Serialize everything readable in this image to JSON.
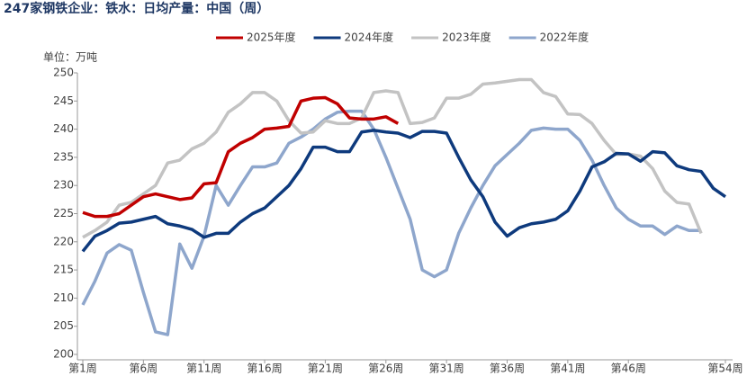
{
  "chart_data": {
    "type": "line",
    "title": "247家钢铁企业：铁水：日均产量：中国（周）",
    "y_axis_label": "单位：万吨",
    "x": [
      1,
      2,
      3,
      4,
      5,
      6,
      7,
      8,
      9,
      10,
      11,
      12,
      13,
      14,
      15,
      16,
      17,
      18,
      19,
      20,
      21,
      22,
      23,
      24,
      25,
      26,
      27,
      28,
      29,
      30,
      31,
      32,
      33,
      34,
      35,
      36,
      37,
      38,
      39,
      40,
      41,
      42,
      43,
      44,
      45,
      46,
      47,
      48,
      49,
      50,
      51,
      52,
      53,
      54
    ],
    "xlim": [
      1,
      54
    ],
    "xticks": [
      {
        "value": 1,
        "label": "第1周"
      },
      {
        "value": 6,
        "label": "第6周"
      },
      {
        "value": 11,
        "label": "第11周"
      },
      {
        "value": 16,
        "label": "第16周"
      },
      {
        "value": 21,
        "label": "第21周"
      },
      {
        "value": 26,
        "label": "第26周"
      },
      {
        "value": 31,
        "label": "第31周"
      },
      {
        "value": 36,
        "label": "第36周"
      },
      {
        "value": 41,
        "label": "第41周"
      },
      {
        "value": 46,
        "label": "第46周"
      },
      {
        "value": 54,
        "label": "第54周"
      }
    ],
    "ylim": [
      200,
      250
    ],
    "yticks": [
      200,
      205,
      210,
      215,
      220,
      225,
      230,
      235,
      240,
      245,
      250
    ],
    "series": [
      {
        "name": "2025年度",
        "color": "#c00000",
        "values": [
          225.2,
          224.5,
          224.5,
          225,
          226.5,
          228,
          228.5,
          228,
          227.5,
          227.8,
          230.3,
          230.5,
          236,
          237.5,
          238.5,
          240,
          240.2,
          240.5,
          245,
          245.5,
          245.6,
          244.5,
          242,
          241.8,
          241.8,
          242.2,
          241,
          null,
          null,
          null,
          null,
          null,
          null,
          null,
          null,
          null,
          null,
          null,
          null,
          null,
          null,
          null,
          null,
          null,
          null,
          null,
          null,
          null,
          null,
          null,
          null,
          null,
          null,
          null
        ]
      },
      {
        "name": "2024年度",
        "color": "#0e3a7d",
        "values": [
          218.3,
          221,
          222,
          223.3,
          223.5,
          224,
          224.5,
          223.2,
          222.8,
          222.2,
          220.8,
          221.5,
          221.5,
          223.5,
          225,
          226,
          228,
          230,
          233,
          236.8,
          236.8,
          236,
          236,
          239.5,
          239.8,
          239.5,
          239.3,
          238.5,
          239.6,
          239.6,
          239.3,
          235,
          231,
          228,
          223.5,
          221,
          222.5,
          223.2,
          223.5,
          224,
          225.5,
          229,
          233.3,
          234.2,
          235.7,
          235.6,
          234.3,
          236,
          235.8,
          233.5,
          232.8,
          232.5,
          229.5,
          228
        ]
      },
      {
        "name": "2023年度",
        "color": "#c3c3c3",
        "values": [
          220.8,
          222,
          223.5,
          226.5,
          227,
          228.5,
          230,
          234,
          234.5,
          236.5,
          237.5,
          239.5,
          243,
          244.5,
          246.5,
          246.5,
          245,
          241.5,
          239.3,
          239.5,
          241.5,
          241,
          241,
          242,
          246.5,
          246.8,
          246.5,
          241,
          241.2,
          242,
          245.5,
          245.5,
          246.2,
          248,
          248.2,
          248.5,
          248.8,
          248.8,
          246.5,
          245.8,
          242.7,
          242.6,
          241,
          238,
          235.5,
          235.6,
          235.2,
          233,
          229,
          227,
          226.7,
          221.5,
          null,
          null
        ]
      },
      {
        "name": "2022年度",
        "color": "#8ea6cc",
        "values": [
          208.8,
          213,
          218,
          219.5,
          218.5,
          211,
          204,
          203.5,
          219.6,
          215.3,
          221,
          230,
          226.5,
          230,
          233.3,
          233.3,
          234,
          237.5,
          238.6,
          240,
          241.8,
          243,
          243.2,
          243.2,
          240,
          235,
          229.5,
          224,
          215,
          213.8,
          215,
          221.5,
          226,
          230,
          233.5,
          235.5,
          237.5,
          239.8,
          240.2,
          240,
          240,
          238,
          234.5,
          230,
          226,
          224,
          222.8,
          222.8,
          221.3,
          222.8,
          222,
          222,
          null,
          null
        ]
      }
    ]
  }
}
